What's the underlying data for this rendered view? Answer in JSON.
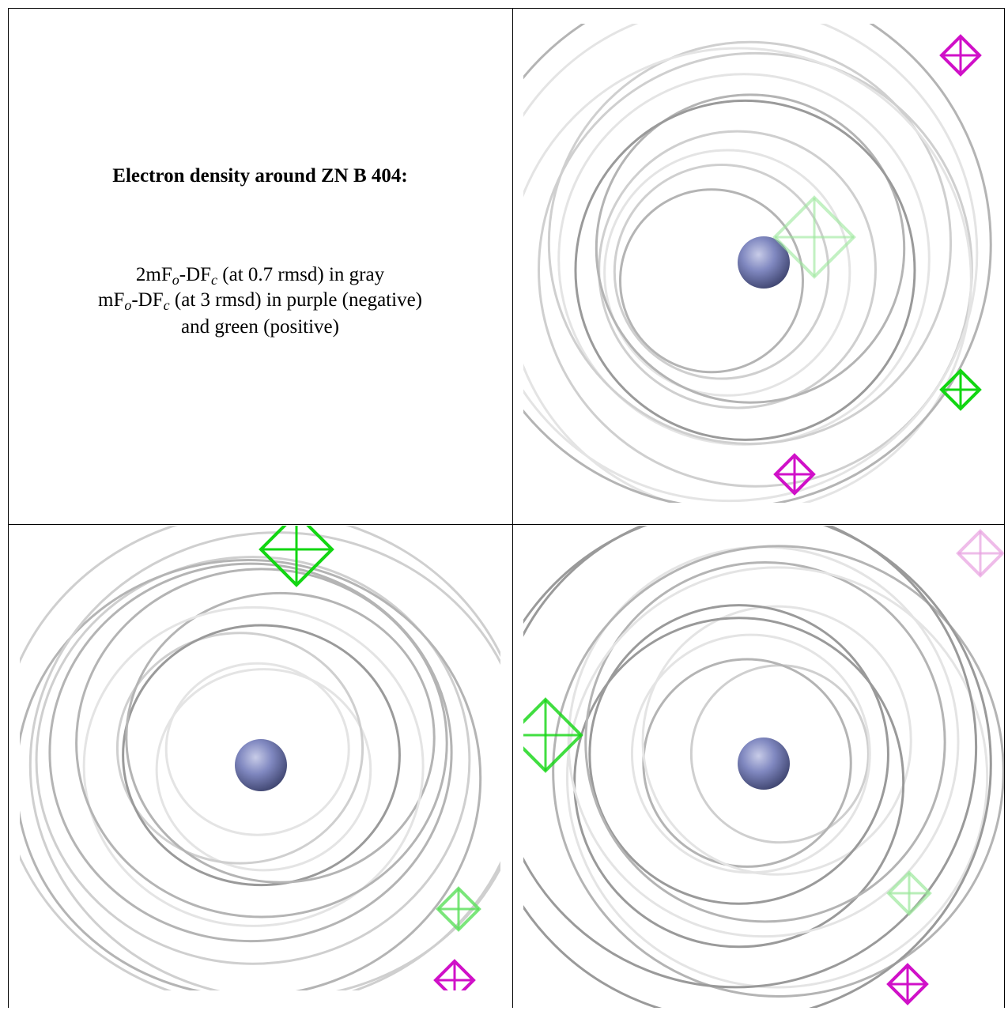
{
  "header": {
    "title": "Electron density around ZN B 404:"
  },
  "legend": {
    "lines": [
      [
        "2mF",
        "o",
        "-DF",
        "c",
        " (at 0.7 rmsd) in gray"
      ],
      [
        "mF",
        "o",
        "-DF",
        "c",
        " (at 3 rmsd) in purple (negative)"
      ],
      [
        "and green (positive)"
      ]
    ]
  }
}
